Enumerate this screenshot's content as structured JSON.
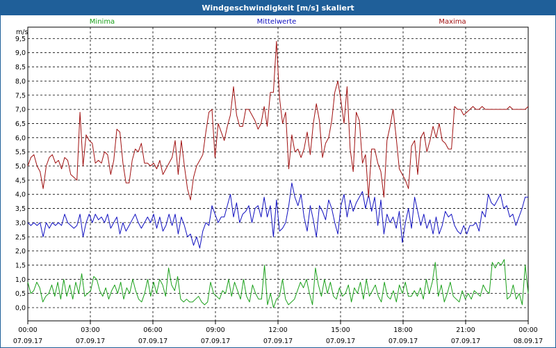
{
  "window": {
    "title": "Windgeschwindigkeit [m/s] skaliert"
  },
  "colors": {
    "titlebar": "#1f5f99",
    "minima": "#1aa01a",
    "mittelwerte": "#1010c0",
    "maxima": "#a01010"
  },
  "chart_data": {
    "type": "line",
    "ylabel": "m/s",
    "ylim": [
      -0.5,
      10
    ],
    "yticks": [
      "0,0",
      "0,5",
      "1,0",
      "1,5",
      "2,0",
      "2,5",
      "3,0",
      "3,5",
      "4,0",
      "4,5",
      "5,0",
      "5,5",
      "6,0",
      "6,5",
      "7,0",
      "7,5",
      "8,0",
      "8,5",
      "9,0",
      "9,5"
    ],
    "xlim": [
      0,
      24
    ],
    "xticks": [
      {
        "time": "00:00",
        "date": "07.09.17"
      },
      {
        "time": "03:00",
        "date": "07.09.17"
      },
      {
        "time": "06:00",
        "date": "07.09.17"
      },
      {
        "time": "09:00",
        "date": "07.09.17"
      },
      {
        "time": "12:00",
        "date": "07.09.17"
      },
      {
        "time": "15:00",
        "date": "07.09.17"
      },
      {
        "time": "18:00",
        "date": "07.09.17"
      },
      {
        "time": "21:00",
        "date": "07.09.17"
      },
      {
        "time": "00:00",
        "date": "08.09.17"
      }
    ],
    "grid": true,
    "series": [
      {
        "name": "Minima",
        "color": "#1aa01a",
        "values": [
          0.9,
          0.5,
          0.6,
          0.9,
          0.7,
          0.2,
          0.4,
          0.5,
          0.8,
          0.4,
          0.9,
          0.3,
          1.0,
          0.4,
          0.8,
          0.3,
          0.9,
          0.5,
          1.2,
          0.4,
          0.5,
          0.6,
          1.1,
          1.0,
          0.6,
          0.4,
          0.7,
          0.3,
          0.6,
          0.8,
          0.5,
          0.9,
          0.3,
          0.7,
          0.5,
          1.0,
          0.6,
          0.3,
          0.2,
          0.5,
          1.0,
          0.4,
          0.9,
          0.5,
          1.0,
          0.8,
          0.4,
          1.4,
          0.8,
          0.6,
          1.1,
          0.3,
          0.2,
          0.3,
          0.2,
          0.2,
          0.3,
          0.4,
          0.2,
          0.1,
          0.2,
          0.9,
          0.5,
          0.4,
          0.3,
          0.6,
          0.5,
          1.0,
          0.4,
          0.9,
          0.6,
          0.3,
          1.0,
          0.4,
          0.2,
          0.8,
          0.5,
          0.3,
          0.3,
          1.5,
          0.1,
          0.5,
          0.0,
          0.3,
          0.4,
          1.0,
          0.3,
          0.1,
          0.2,
          0.3,
          0.6,
          0.9,
          0.7,
          1.0,
          0.5,
          0.1,
          1.4,
          0.8,
          0.4,
          1.0,
          0.5,
          0.9,
          0.4,
          0.3,
          0.7,
          0.4,
          0.5,
          0.8,
          0.2,
          0.7,
          0.5,
          0.9,
          0.3,
          1.0,
          0.4,
          0.6,
          0.8,
          0.4,
          0.2,
          0.9,
          0.4,
          0.3,
          0.6,
          0.2,
          0.8,
          0.5,
          0.9,
          0.4,
          0.4,
          0.6,
          0.4,
          0.7,
          0.3,
          1.0,
          0.5,
          0.9,
          1.6,
          0.4,
          0.8,
          0.2,
          0.5,
          0.9,
          0.4,
          0.3,
          0.2,
          0.6,
          0.3,
          0.5,
          0.3,
          0.6,
          0.5,
          0.4,
          0.8,
          0.6,
          0.5,
          1.6,
          1.4,
          1.6,
          1.5,
          1.7,
          0.3,
          0.4,
          0.8,
          0.3,
          0.5,
          0.1,
          1.5,
          0.5
        ]
      },
      {
        "name": "Mittelwerte",
        "color": "#1010c0",
        "values": [
          3.0,
          2.9,
          3.0,
          2.9,
          3.0,
          2.5,
          3.0,
          2.8,
          3.0,
          2.9,
          3.0,
          2.9,
          3.3,
          3.0,
          2.9,
          2.8,
          2.9,
          3.3,
          2.5,
          3.0,
          3.3,
          3.0,
          3.3,
          3.1,
          3.2,
          3.0,
          3.3,
          2.8,
          3.0,
          3.2,
          2.6,
          3.0,
          2.7,
          2.9,
          3.1,
          3.3,
          3.0,
          2.8,
          3.0,
          3.2,
          3.0,
          3.3,
          2.8,
          3.2,
          2.7,
          2.9,
          3.3,
          2.9,
          3.3,
          2.6,
          3.2,
          2.9,
          2.5,
          2.6,
          2.2,
          2.5,
          2.1,
          2.7,
          3.0,
          2.9,
          3.6,
          3.3,
          3.0,
          3.2,
          3.2,
          3.6,
          4.0,
          3.2,
          3.7,
          3.0,
          3.3,
          3.4,
          3.6,
          3.0,
          3.5,
          3.6,
          3.2,
          3.9,
          3.2,
          3.6,
          2.5,
          3.8,
          2.7,
          2.8,
          3.0,
          3.6,
          4.4,
          3.9,
          3.6,
          4.0,
          3.2,
          2.7,
          3.6,
          3.1,
          2.5,
          3.6,
          3.4,
          3.1,
          3.8,
          3.5,
          3.0,
          2.6,
          3.6,
          4.0,
          3.2,
          3.8,
          3.4,
          3.7,
          3.9,
          4.1,
          3.5,
          4.0,
          3.4,
          3.9,
          2.9,
          3.8,
          2.6,
          3.3,
          3.0,
          3.2,
          2.8,
          3.4,
          2.3,
          3.0,
          3.5,
          2.8,
          3.9,
          3.4,
          2.9,
          3.3,
          2.8,
          3.1,
          2.6,
          3.2,
          2.6,
          2.9,
          3.4,
          3.2,
          3.3,
          2.9,
          2.7,
          2.6,
          2.9,
          2.6,
          2.9,
          2.9,
          3.0,
          2.7,
          3.4,
          3.2,
          4.0,
          3.7,
          3.6,
          3.8,
          4.0,
          3.5,
          3.6,
          3.2,
          3.3,
          2.9,
          3.2,
          3.5,
          3.9,
          3.9
        ]
      },
      {
        "name": "Maxima",
        "color": "#a01010",
        "values": [
          5.0,
          5.3,
          5.4,
          5.0,
          4.8,
          4.2,
          5.0,
          5.3,
          5.4,
          5.1,
          5.2,
          4.9,
          5.3,
          5.2,
          4.7,
          4.6,
          4.5,
          6.9,
          5.0,
          6.1,
          5.9,
          5.8,
          5.1,
          5.2,
          5.1,
          5.5,
          5.4,
          4.7,
          5.2,
          6.3,
          6.2,
          5.1,
          4.4,
          4.4,
          5.2,
          5.6,
          5.5,
          5.8,
          5.1,
          5.1,
          5.0,
          5.1,
          4.9,
          5.2,
          4.7,
          4.9,
          5.1,
          5.3,
          5.9,
          4.7,
          5.9,
          5.0,
          4.2,
          3.8,
          4.6,
          5.0,
          5.2,
          5.4,
          6.2,
          6.9,
          7.0,
          5.3,
          6.5,
          6.2,
          5.9,
          6.4,
          6.8,
          7.8,
          6.8,
          6.4,
          6.4,
          7.0,
          7.0,
          6.8,
          6.6,
          6.3,
          6.5,
          7.1,
          6.4,
          7.6,
          7.6,
          9.4,
          7.4,
          6.5,
          6.9,
          4.9,
          6.1,
          5.5,
          5.6,
          5.3,
          5.6,
          6.2,
          5.4,
          6.5,
          7.2,
          6.6,
          5.3,
          5.8,
          6.0,
          6.6,
          7.6,
          8.0,
          7.3,
          6.5,
          7.8,
          5.6,
          4.8,
          6.9,
          6.6,
          5.1,
          5.4,
          3.9,
          5.6,
          5.6,
          5.1,
          4.8,
          3.9,
          5.9,
          6.4,
          7.0,
          6.0,
          4.9,
          4.7,
          4.5,
          4.2,
          5.7,
          5.9,
          4.7,
          6.0,
          6.2,
          5.5,
          5.9,
          6.4,
          6.0,
          6.5,
          5.9,
          5.8,
          5.6,
          5.6,
          7.1,
          7.0,
          7.0,
          6.8,
          6.9,
          7.0,
          7.1,
          7.0,
          7.0,
          7.1,
          7.0,
          7.0,
          7.0,
          7.0,
          7.0,
          7.0,
          7.0,
          7.0,
          7.1,
          7.0,
          7.0,
          7.0,
          7.0,
          7.0,
          7.1
        ]
      }
    ]
  }
}
